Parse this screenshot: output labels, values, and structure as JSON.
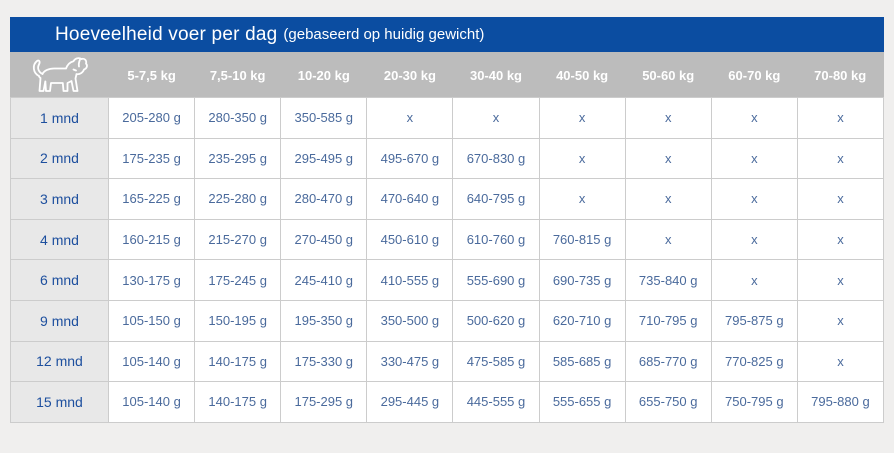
{
  "header": {
    "title": "Hoeveelheid voer per dag",
    "subtitle": "(gebaseerd op huidig gewicht)"
  },
  "icons": {
    "corner": "dog-icon"
  },
  "colors": {
    "banner_blue": "#0b4da1",
    "header_gray": "#bcbcbc",
    "age_column_gray": "#e8e8e8",
    "age_text_blue": "#1d4f9e",
    "cell_text_blue": "#4a6a9c",
    "border_gray": "#cccccc",
    "page_background": "#f0efee"
  },
  "chart_data": {
    "type": "table",
    "title": "Hoeveelheid voer per dag (gebaseerd op huidig gewicht)",
    "columns": [
      "5-7,5 kg",
      "7,5-10 kg",
      "10-20 kg",
      "20-30 kg",
      "30-40 kg",
      "40-50 kg",
      "50-60 kg",
      "60-70 kg",
      "70-80 kg"
    ],
    "row_header_unit": "mnd",
    "rows": [
      {
        "age": "1 mnd",
        "values": [
          "205-280 g",
          "280-350 g",
          "350-585 g",
          "x",
          "x",
          "x",
          "x",
          "x",
          "x"
        ]
      },
      {
        "age": "2 mnd",
        "values": [
          "175-235 g",
          "235-295 g",
          "295-495 g",
          "495-670 g",
          "670-830 g",
          "x",
          "x",
          "x",
          "x"
        ]
      },
      {
        "age": "3 mnd",
        "values": [
          "165-225 g",
          "225-280 g",
          "280-470 g",
          "470-640 g",
          "640-795 g",
          "x",
          "x",
          "x",
          "x"
        ]
      },
      {
        "age": "4 mnd",
        "values": [
          "160-215 g",
          "215-270 g",
          "270-450 g",
          "450-610 g",
          "610-760 g",
          "760-815 g",
          "x",
          "x",
          "x"
        ]
      },
      {
        "age": "6 mnd",
        "values": [
          "130-175 g",
          "175-245 g",
          "245-410 g",
          "410-555 g",
          "555-690 g",
          "690-735 g",
          "735-840 g",
          "x",
          "x"
        ]
      },
      {
        "age": "9 mnd",
        "values": [
          "105-150 g",
          "150-195 g",
          "195-350 g",
          "350-500 g",
          "500-620 g",
          "620-710 g",
          "710-795 g",
          "795-875 g",
          "x"
        ]
      },
      {
        "age": "12 mnd",
        "values": [
          "105-140 g",
          "140-175 g",
          "175-330 g",
          "330-475 g",
          "475-585 g",
          "585-685 g",
          "685-770 g",
          "770-825 g",
          "x"
        ]
      },
      {
        "age": "15 mnd",
        "values": [
          "105-140 g",
          "140-175 g",
          "175-295 g",
          "295-445 g",
          "445-555 g",
          "555-655 g",
          "655-750 g",
          "750-795 g",
          "795-880 g"
        ]
      }
    ]
  }
}
